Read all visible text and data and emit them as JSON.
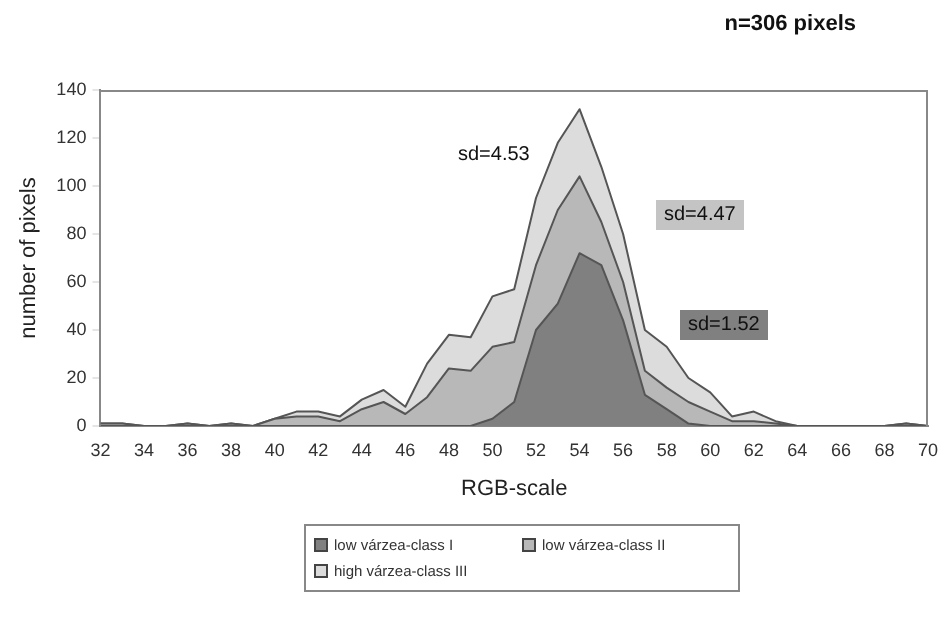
{
  "chart_data": {
    "type": "area",
    "stacked": true,
    "xlabel": "RGB-scale",
    "ylabel": "number of pixels",
    "x": [
      32,
      33,
      34,
      35,
      36,
      37,
      38,
      39,
      40,
      41,
      42,
      43,
      44,
      45,
      46,
      47,
      48,
      49,
      50,
      51,
      52,
      53,
      54,
      55,
      56,
      57,
      58,
      59,
      60,
      61,
      62,
      63,
      64,
      65,
      66,
      67,
      68,
      69,
      70
    ],
    "series": [
      {
        "name": "low várzea-class I",
        "color": "#808080",
        "values": [
          0,
          0,
          0,
          0,
          0,
          0,
          0,
          0,
          0,
          0,
          0,
          0,
          0,
          0,
          0,
          0,
          0,
          0,
          3,
          10,
          40,
          51,
          72,
          67,
          44,
          13,
          7,
          1,
          0,
          0,
          0,
          0,
          0,
          0,
          0,
          0,
          0,
          0,
          0
        ]
      },
      {
        "name": "low várzea-class II",
        "color": "#b8b8b8",
        "values": [
          1,
          1,
          0,
          0,
          1,
          0,
          1,
          0,
          3,
          4,
          4,
          2,
          7,
          10,
          5,
          12,
          24,
          23,
          30,
          25,
          27,
          39,
          32,
          18,
          16,
          10,
          9,
          9,
          6,
          2,
          2,
          1,
          0,
          0,
          0,
          0,
          0,
          1,
          0
        ]
      },
      {
        "name": "high várzea-class III",
        "color": "#dcdcdc",
        "values": [
          0,
          0,
          0,
          0,
          0,
          0,
          0,
          0,
          0,
          2,
          2,
          2,
          4,
          5,
          3,
          14,
          14,
          14,
          21,
          22,
          28,
          28,
          28,
          23,
          20,
          17,
          17,
          10,
          8,
          2,
          4,
          1,
          0,
          0,
          0,
          0,
          0,
          0,
          0
        ]
      }
    ],
    "xlim": [
      32,
      70
    ],
    "xticks": [
      32,
      34,
      36,
      38,
      40,
      42,
      44,
      46,
      48,
      50,
      52,
      54,
      56,
      58,
      60,
      62,
      64,
      66,
      68,
      70
    ],
    "ylim": [
      0,
      140
    ],
    "yticks": [
      0,
      20,
      40,
      60,
      80,
      100,
      120,
      140
    ],
    "grid": false,
    "legend": "bottom",
    "marker": "none",
    "annotations": [
      "n=306 pixels",
      "sd=4.53",
      "sd=4.47",
      "sd=1.52"
    ]
  }
}
